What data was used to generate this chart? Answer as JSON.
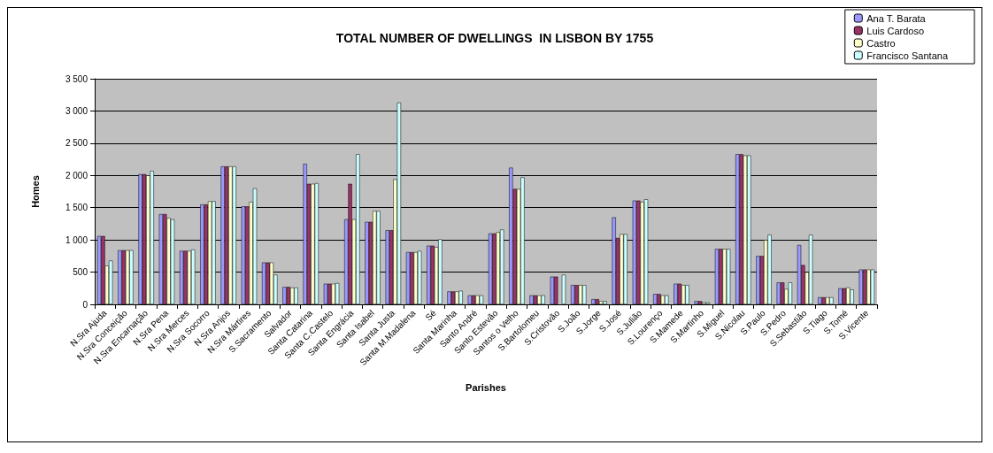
{
  "chart_data": {
    "type": "bar",
    "title": "TOTAL NUMBER OF DWELLINGS  IN LISBON BY 1755",
    "xlabel": "Parishes",
    "ylabel": "Homes",
    "categories": [
      "N.Sra Ajuda",
      "N.Sra Conceição",
      "N.Sra Encarnação",
      "N.Sra Pena",
      "N.Sra Merces",
      "N.Sra Socorro",
      "N.Sra Anjos",
      "N.Sra Mártires",
      "S.Sacramento",
      "Salvador",
      "Santa Catarina",
      "Santa C.Castelo",
      "Santa Engrácia",
      "Santa Isabel",
      "Santa Justa",
      "Santa M.Madalena",
      "Sé",
      "Santa Marinha",
      "Santo André",
      "Santo Estevão",
      "Santos o Velho",
      "S.Bartolomeu",
      "S.Cristovão",
      "S.João",
      "S.Jorge",
      "S.José",
      "S.Julião",
      "S.Lourenço",
      "S.Mamede",
      "S.Martinho",
      "S.Miguel",
      "S.Nicolau",
      "S.Paulo",
      "S.Pedro",
      "S.Sebastião",
      "S.Tiago",
      "S.Tomé",
      "S.Vicente"
    ],
    "series": [
      {
        "name": "Ana T. Barata",
        "color": "#9999ff",
        "values": [
          1060,
          840,
          2020,
          1400,
          830,
          1550,
          2140,
          1520,
          650,
          270,
          2180,
          320,
          1320,
          1280,
          1150,
          810,
          910,
          200,
          140,
          1100,
          2120,
          140,
          430,
          300,
          80,
          1350,
          1610,
          160,
          320,
          50,
          860,
          2330,
          750,
          340,
          920,
          110,
          250,
          540
        ]
      },
      {
        "name": "Luis Cardoso",
        "color": "#993366",
        "values": [
          1060,
          840,
          2020,
          1400,
          830,
          1550,
          2140,
          1520,
          650,
          270,
          1870,
          320,
          1870,
          1280,
          1150,
          810,
          910,
          200,
          140,
          1100,
          1790,
          140,
          430,
          300,
          80,
          1030,
          1610,
          160,
          320,
          50,
          860,
          2330,
          750,
          340,
          610,
          110,
          250,
          540
        ]
      },
      {
        "name": "Castro",
        "color": "#ffffcc",
        "values": [
          600,
          840,
          2000,
          1340,
          830,
          1600,
          2140,
          1590,
          650,
          260,
          1870,
          320,
          1320,
          1450,
          1940,
          810,
          890,
          200,
          140,
          1120,
          1790,
          140,
          null,
          300,
          50,
          1090,
          1590,
          140,
          300,
          30,
          860,
          2310,
          1000,
          240,
          500,
          110,
          260,
          540
        ]
      },
      {
        "name": "Francisco Santana",
        "color": "#ccffff",
        "values": [
          680,
          840,
          2070,
          1320,
          850,
          1600,
          2140,
          1800,
          460,
          260,
          1880,
          330,
          2330,
          1450,
          3130,
          830,
          1010,
          210,
          140,
          1160,
          1970,
          140,
          460,
          300,
          50,
          1090,
          1630,
          140,
          300,
          30,
          860,
          2310,
          1080,
          340,
          1080,
          110,
          230,
          540
        ]
      }
    ],
    "ylim": [
      0,
      3500
    ],
    "yticks": [
      0,
      500,
      {
        "value": 1000,
        "label": "1 000"
      },
      {
        "value": 1500,
        "label": "1 500"
      },
      {
        "value": 2000,
        "label": "2 000"
      },
      {
        "value": 2500,
        "label": "2 500"
      },
      {
        "value": 3000,
        "label": "3 000"
      },
      {
        "value": 3500,
        "label": "3 500"
      }
    ],
    "grid": "y",
    "legend": "top right"
  }
}
